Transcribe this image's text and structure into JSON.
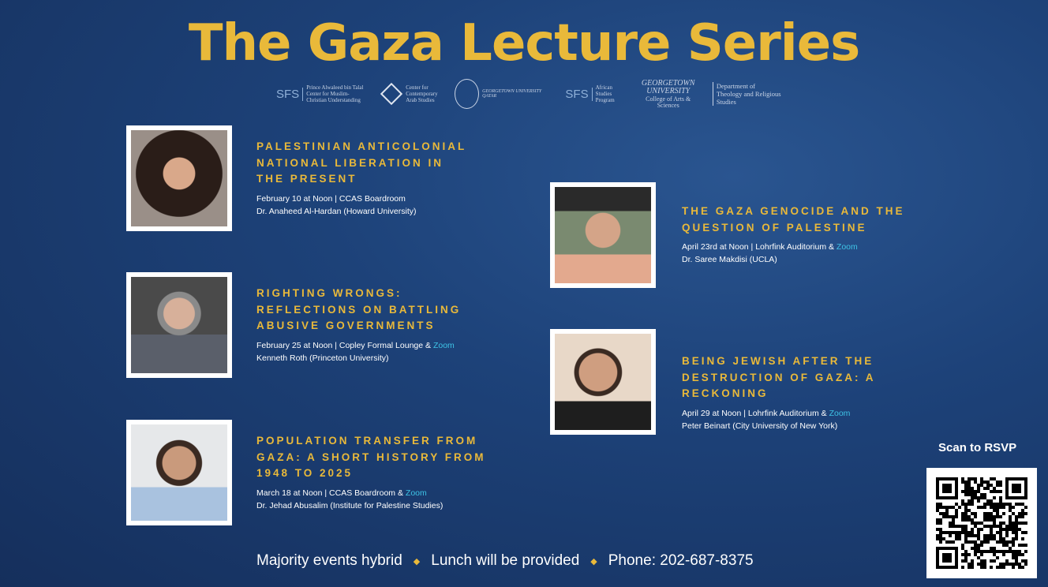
{
  "title": "The Gaza Lecture Series",
  "logos": {
    "sfs1": "SFS",
    "sfs1_text": "Prince Alwaleed bin Talal Center for Muslim-Christian Understanding",
    "ccas": "Center for Contemporary Arab Studies",
    "guq": "GEORGETOWN UNIVERSITY QATAR",
    "sfs2": "SFS",
    "sfs2_text": "African Studies Program",
    "gu": "GEORGETOWN UNIVERSITY",
    "gu_sub": "College of Arts & Sciences",
    "theo": "Department of Theology and Religious Studies"
  },
  "events": [
    {
      "title": "PALESTINIAN ANTICOLONIAL NATIONAL LIBERATION IN THE PRESENT",
      "when": "February 10 at Noon | CCAS Boardroom",
      "zoom": "",
      "speaker": "Dr. Anaheed Al-Hardan (Howard University)"
    },
    {
      "title": "RIGHTING WRONGS: REFLECTIONS ON BATTLING ABUSIVE GOVERNMENTS",
      "when": "February 25 at Noon | Copley Formal Lounge & ",
      "zoom": "Zoom",
      "speaker": "Kenneth Roth (Princeton University)"
    },
    {
      "title": "POPULATION TRANSFER FROM GAZA: A SHORT HISTORY FROM 1948 TO 2025",
      "when": "March 18 at Noon | CCAS Boardroom & ",
      "zoom": "Zoom",
      "speaker": "Dr. Jehad Abusalim (Institute for Palestine Studies)"
    },
    {
      "title": "THE GAZA GENOCIDE AND THE QUESTION OF PALESTINE",
      "when": "April 23rd at Noon |  Lohrfink Auditorium & ",
      "zoom": "Zoom",
      "speaker": "Dr. Saree Makdisi (UCLA)"
    },
    {
      "title": "BEING JEWISH AFTER THE DESTRUCTION OF GAZA: A RECKONING",
      "when": "April 29 at Noon |  Lohrfink Auditorium & ",
      "zoom": "Zoom",
      "speaker": "Peter Beinart (City University of New York)"
    }
  ],
  "footer": {
    "a": "Majority events hybrid",
    "b": "Lunch will be provided",
    "c": "Phone: 202-687-8375"
  },
  "rsvp": "Scan to RSVP",
  "colors": {
    "gold": "#e9b93a",
    "zoom": "#3ec3e6",
    "bg": "#1d4279"
  }
}
